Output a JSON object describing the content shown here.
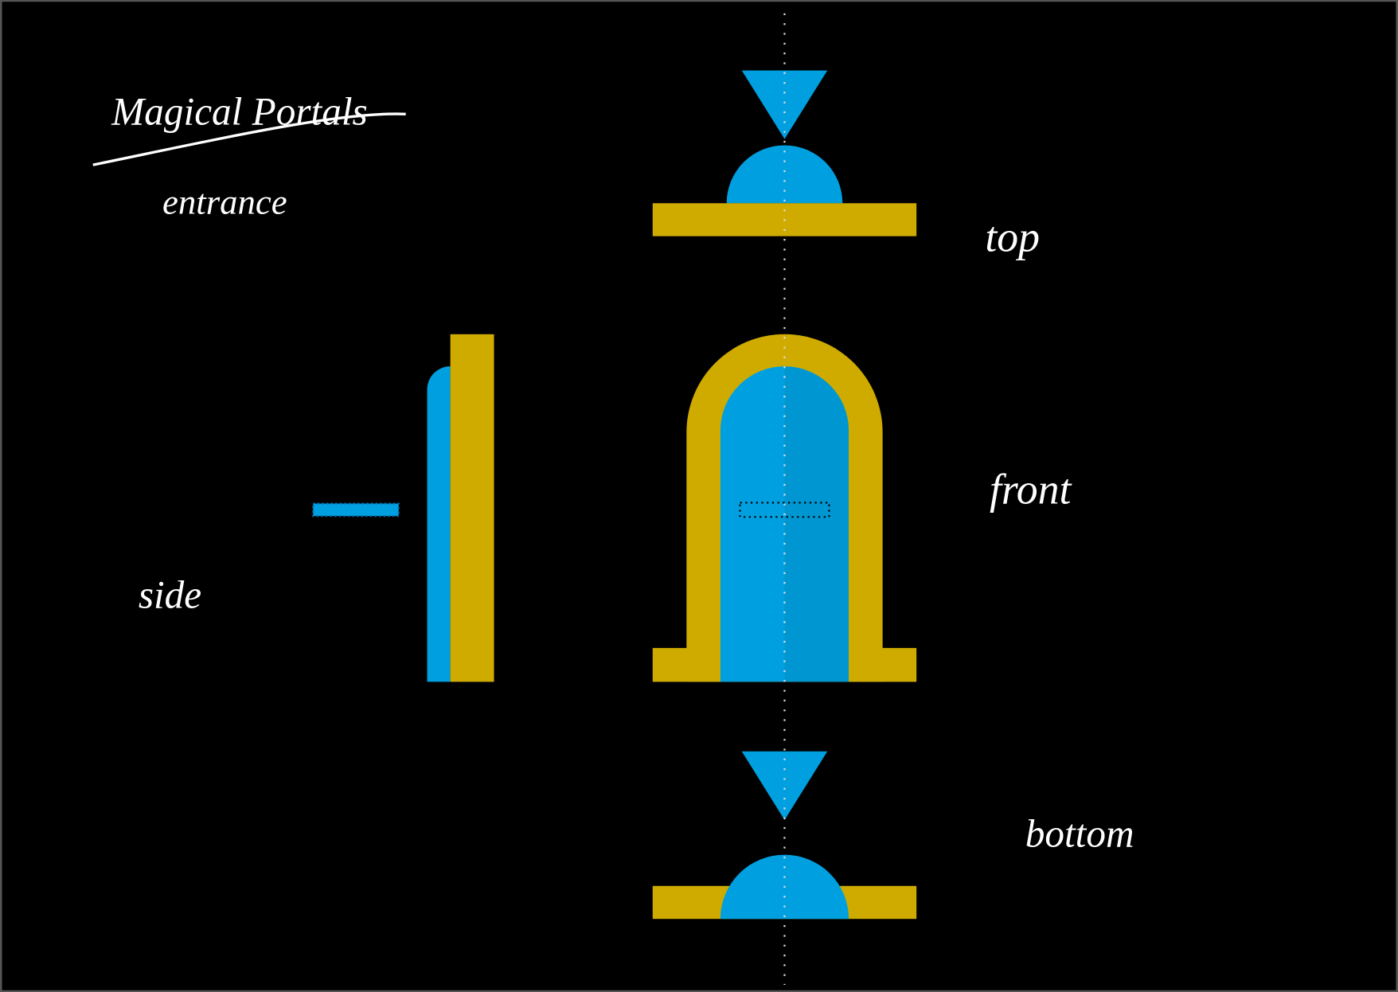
{
  "title": "Magical Portals",
  "subtitle": "entrance",
  "labels": {
    "top": "top",
    "front": "front",
    "side": "side",
    "bottom": "bottom"
  }
}
